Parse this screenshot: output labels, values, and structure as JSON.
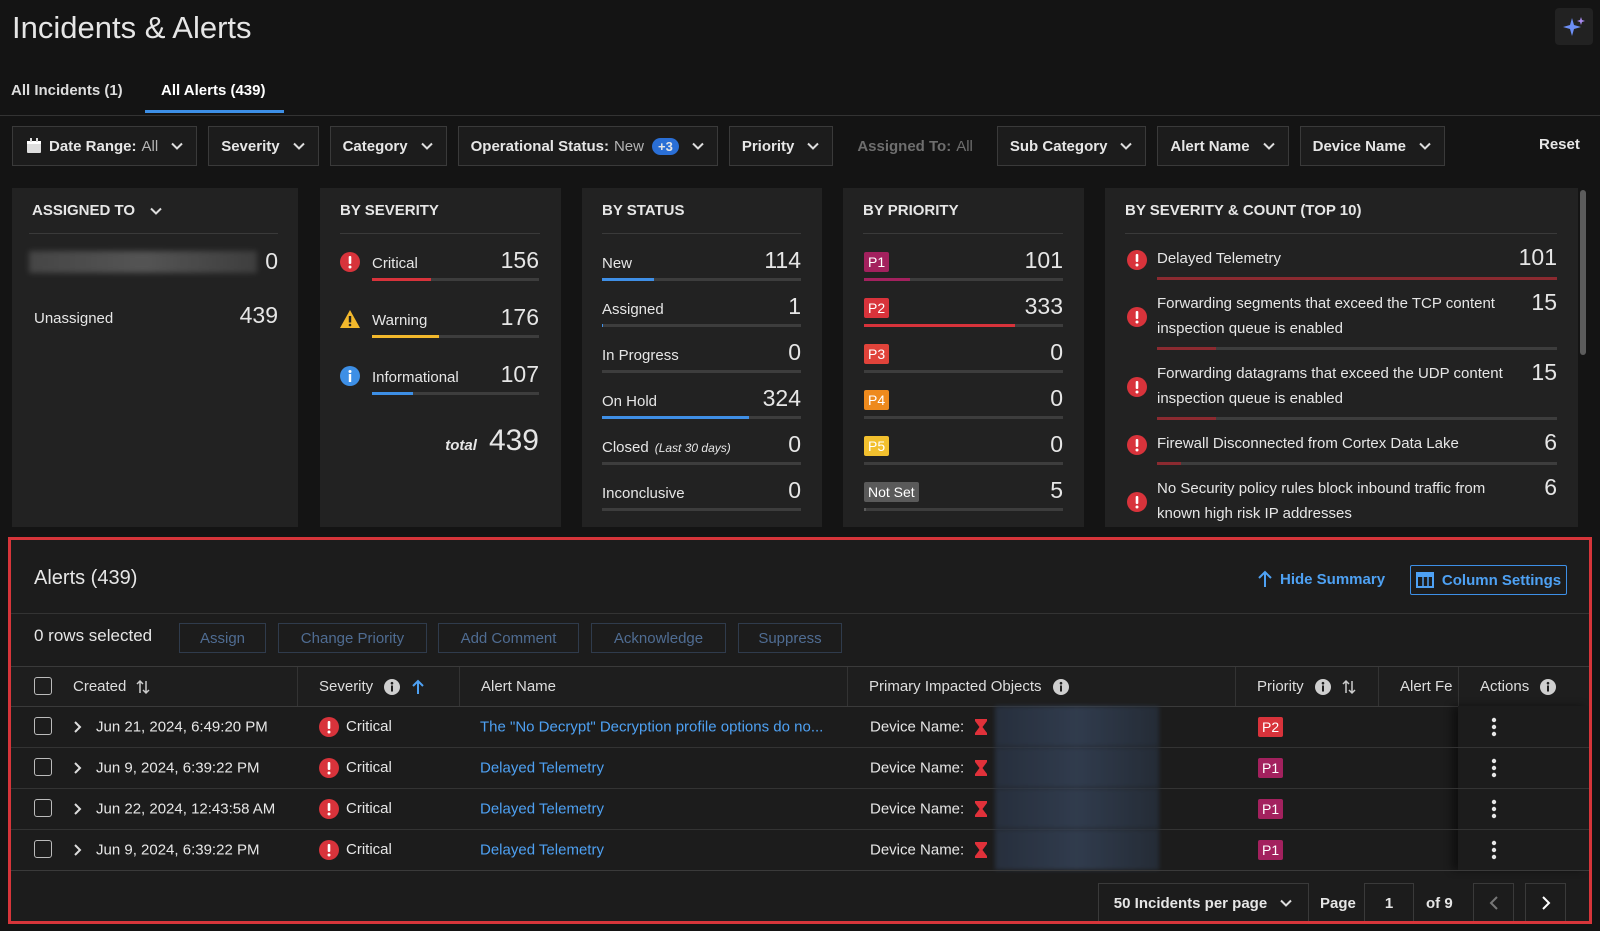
{
  "header": {
    "title": "Incidents & Alerts"
  },
  "tabs": {
    "items": [
      "All Incidents (1)",
      "All Alerts (439)"
    ],
    "active": 1
  },
  "filters": {
    "items": [
      {
        "label": "Date Range:",
        "value": "All"
      },
      {
        "label": "Severity"
      },
      {
        "label": "Category"
      },
      {
        "label": "Operational Status:",
        "value": "New",
        "badge": "+3"
      },
      {
        "label": "Priority"
      },
      {
        "label": "Assigned To:",
        "value": "All",
        "disabled": true
      },
      {
        "label": "Sub Category"
      },
      {
        "label": "Alert Name"
      },
      {
        "label": "Device Name"
      }
    ],
    "reset": "Reset"
  },
  "summary": {
    "assigned_to": {
      "title": "ASSIGNED TO",
      "rows": [
        {
          "value": 0
        },
        {
          "label": "Unassigned",
          "value": 439
        }
      ]
    },
    "by_severity": {
      "title": "BY SEVERITY",
      "rows": [
        {
          "label": "Critical",
          "value": 156,
          "color": "#d8333b"
        },
        {
          "label": "Warning",
          "value": 176,
          "color": "#f2b82c"
        },
        {
          "label": "Informational",
          "value": 107,
          "color": "#3d8fe6"
        }
      ],
      "total_label": "total",
      "total": 439
    },
    "by_status": {
      "title": "BY STATUS",
      "color": "#3f8fe6",
      "rows": [
        {
          "label": "New",
          "value": 114
        },
        {
          "label": "Assigned",
          "value": 1
        },
        {
          "label": "In Progress",
          "value": 0
        },
        {
          "label": "On Hold",
          "value": 324
        },
        {
          "label": "Closed",
          "note": "(Last 30 days)",
          "value": 0
        },
        {
          "label": "Inconclusive",
          "value": 0
        }
      ]
    },
    "by_priority": {
      "title": "BY PRIORITY",
      "rows": [
        {
          "label": "P1",
          "value": 101,
          "color": "#a3215e"
        },
        {
          "label": "P2",
          "value": 333,
          "color": "#d8333b"
        },
        {
          "label": "P3",
          "value": 0,
          "color": "#e0433a"
        },
        {
          "label": "P4",
          "value": 0,
          "color": "#ee8a1d"
        },
        {
          "label": "P5",
          "value": 0,
          "color": "#f2c02e"
        },
        {
          "label": "Not Set",
          "value": 5,
          "color": "#5a5a5a"
        }
      ]
    },
    "by_severity_count": {
      "title": "BY SEVERITY & COUNT (TOP 10)",
      "color": "#8b2a30",
      "rows": [
        {
          "label": "Delayed Telemetry",
          "value": 101
        },
        {
          "label": "Forwarding segments that exceed the TCP content inspection queue is enabled",
          "value": 15
        },
        {
          "label": "Forwarding datagrams that exceed the UDP content inspection queue is enabled",
          "value": 15
        },
        {
          "label": "Firewall Disconnected from Cortex Data Lake",
          "value": 6
        },
        {
          "label": "No Security policy rules block inbound traffic from known high risk IP addresses",
          "value": 6
        }
      ]
    }
  },
  "alerts": {
    "title": "Alerts (439)",
    "hide_summary": "Hide Summary",
    "column_settings": "Column Settings",
    "selection": "0 rows selected",
    "actions": [
      "Assign",
      "Change Priority",
      "Add Comment",
      "Acknowledge",
      "Suppress"
    ],
    "columns": [
      "Created",
      "Severity",
      "Alert Name",
      "Primary Impacted Objects",
      "Priority",
      "Alert Fe",
      "Actions"
    ],
    "rows": [
      {
        "created": "Jun 21, 2024, 6:49:20 PM",
        "severity": "Critical",
        "alert_name": "The \"No Decrypt\" Decryption profile options do no...",
        "object_label": "Device Name:",
        "priority": "P2"
      },
      {
        "created": "Jun 9, 2024, 6:39:22 PM",
        "severity": "Critical",
        "alert_name": "Delayed Telemetry",
        "object_label": "Device Name:",
        "priority": "P1"
      },
      {
        "created": "Jun 22, 2024, 12:43:58 AM",
        "severity": "Critical",
        "alert_name": "Delayed Telemetry",
        "object_label": "Device Name:",
        "priority": "P1"
      },
      {
        "created": "Jun 9, 2024, 6:39:22 PM",
        "severity": "Critical",
        "alert_name": "Delayed Telemetry",
        "object_label": "Device Name:",
        "priority": "P1"
      }
    ],
    "pagination": {
      "per_page": "50 Incidents per page",
      "page_label": "Page",
      "page": 1,
      "of": "of 9"
    }
  }
}
